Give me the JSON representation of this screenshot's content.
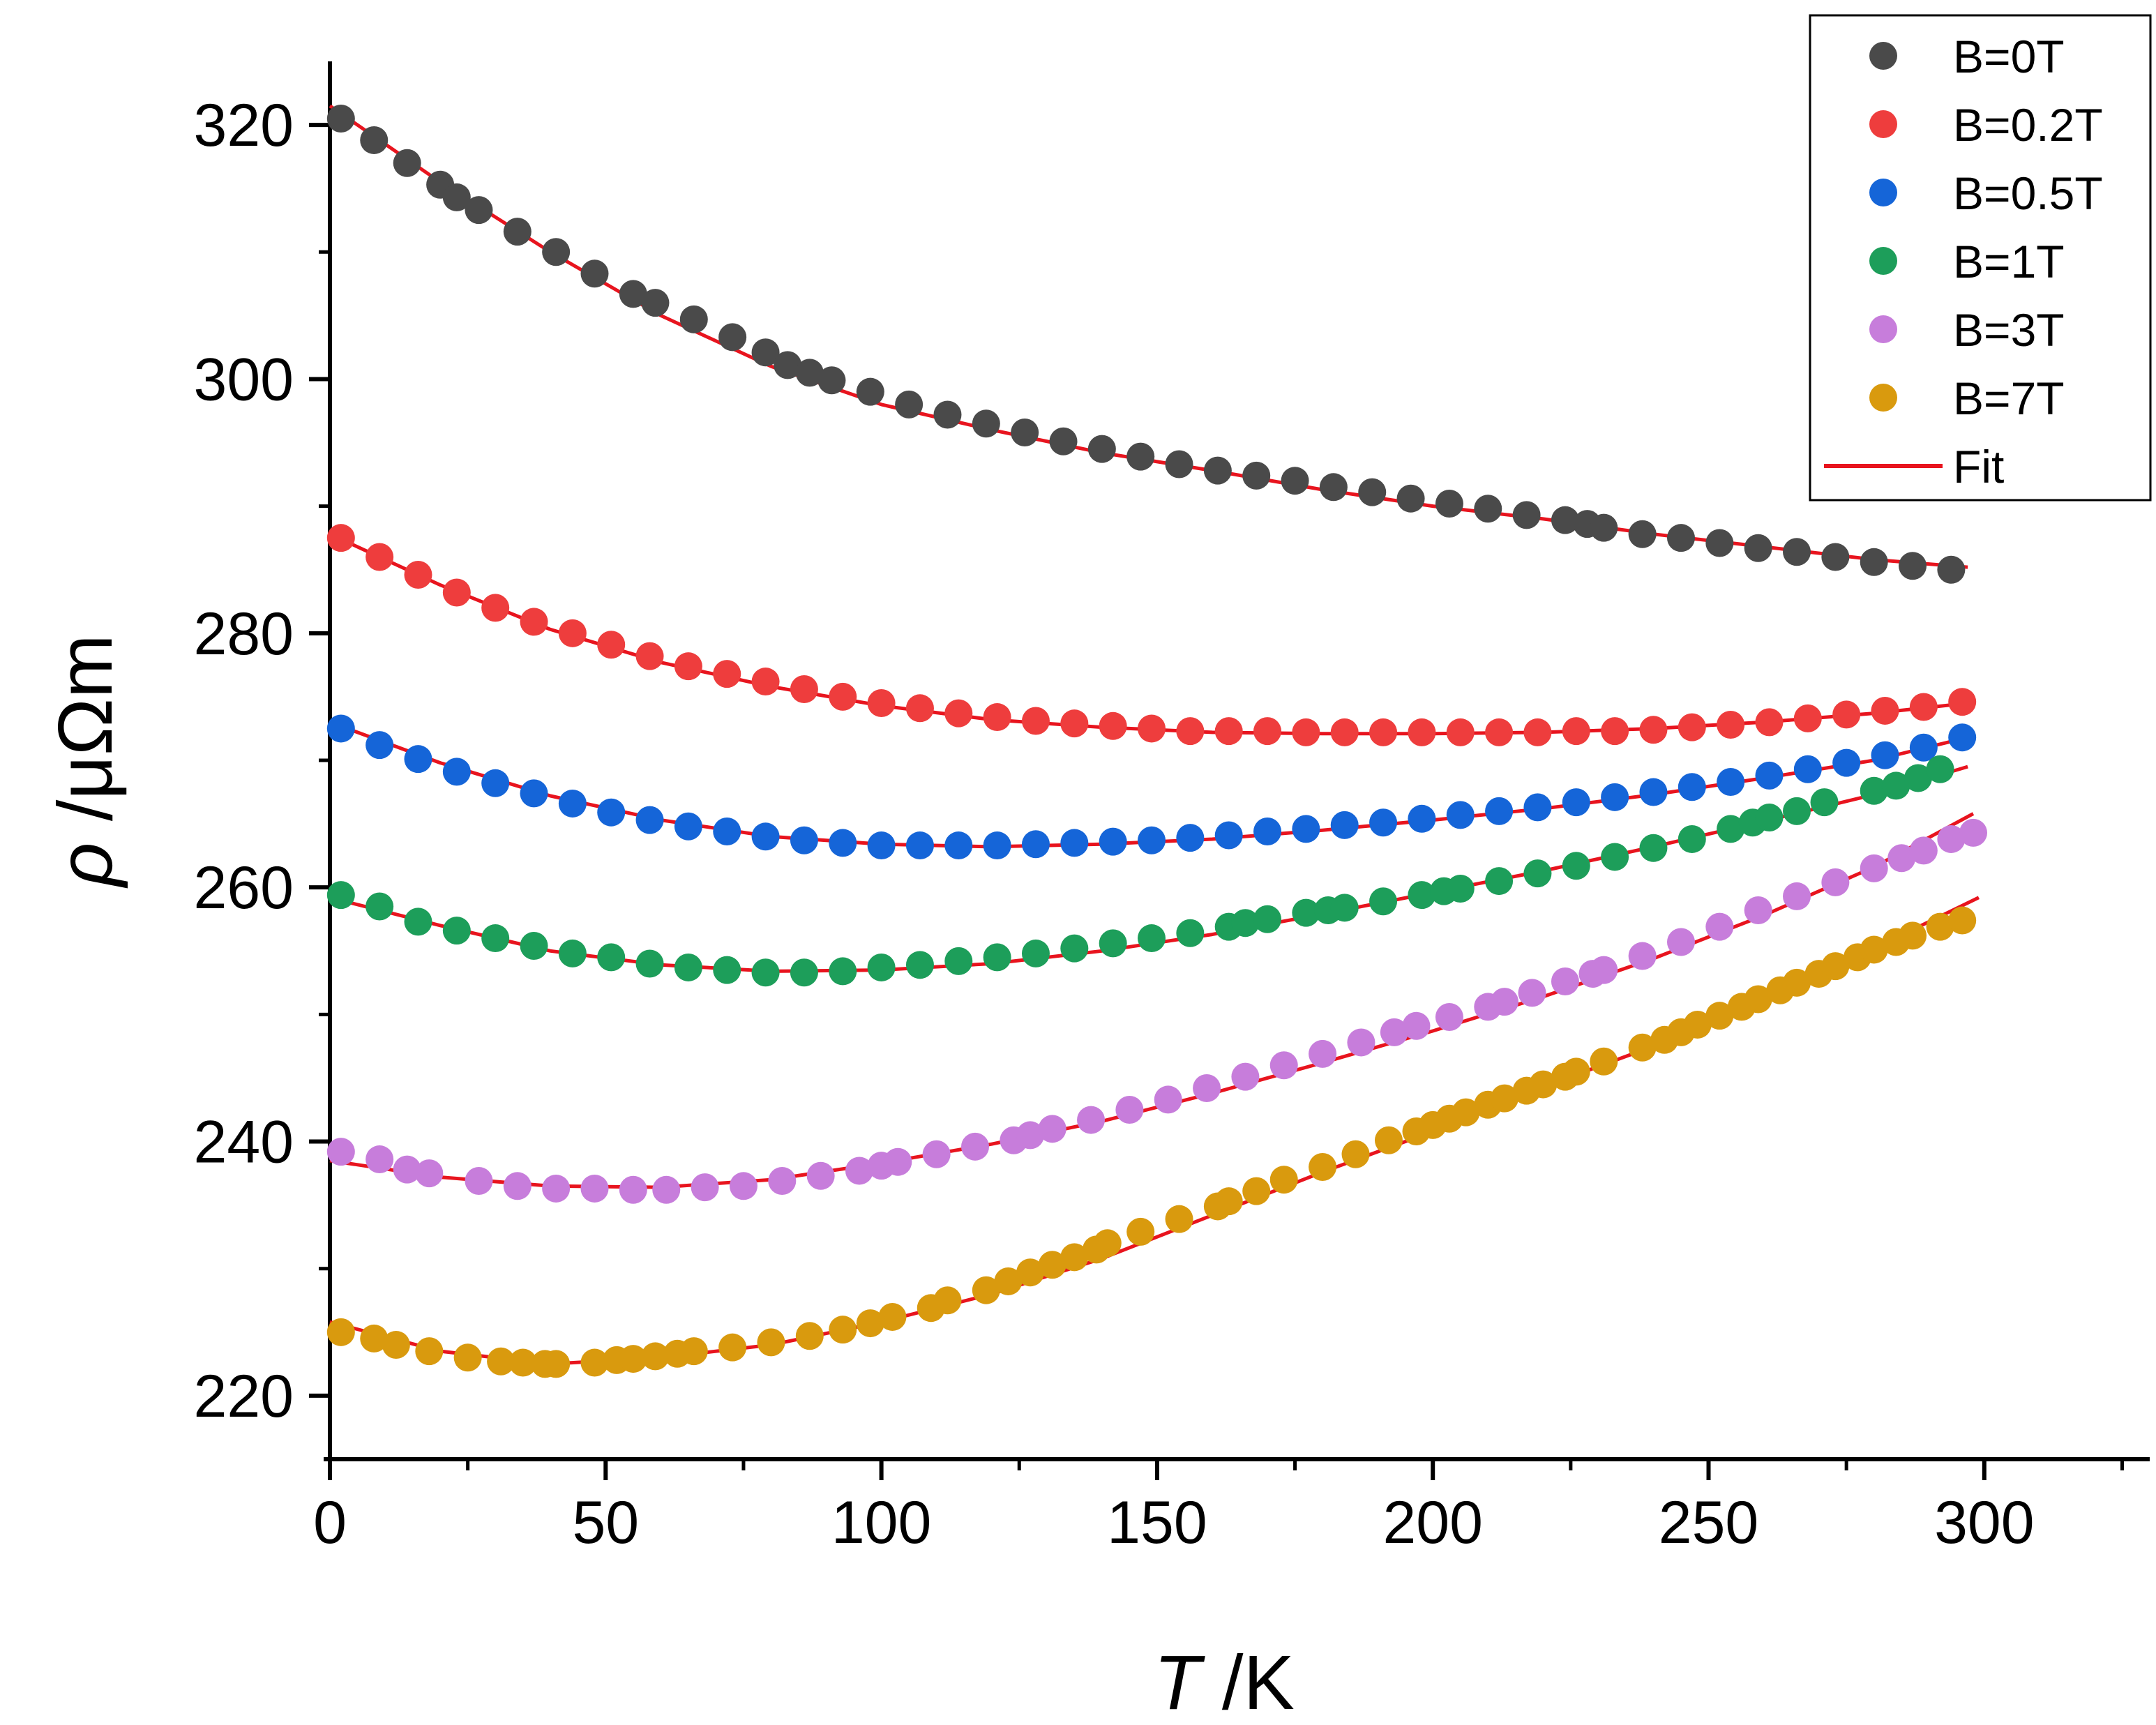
{
  "chart_data": {
    "type": "scatter",
    "title": "",
    "xlabel": "T /K",
    "xlabel_italic": "T",
    "xlabel_unit": " /K",
    "ylabel": "ρ /μΩm",
    "ylabel_symbol": "ρ",
    "ylabel_unit": " /μΩm",
    "xlim": [
      0,
      330
    ],
    "ylim": [
      215,
      325
    ],
    "x_ticks": [
      0,
      50,
      100,
      150,
      200,
      250,
      300
    ],
    "x_tick_labels": [
      "0",
      "50",
      "100",
      "150",
      "200",
      "250",
      "300"
    ],
    "y_ticks": [
      220,
      240,
      260,
      280,
      300,
      320
    ],
    "y_tick_labels": [
      "220",
      "240",
      "260",
      "280",
      "300",
      "320"
    ],
    "grid": false,
    "legend_position": "top-right",
    "series": [
      {
        "name": "B=0T",
        "color": "#4a4a4a",
        "x": [
          2,
          8,
          14,
          20,
          23,
          27,
          34,
          41,
          48,
          55,
          59,
          66,
          73,
          79,
          83,
          87,
          91,
          98,
          105,
          112,
          119,
          126,
          133,
          140,
          147,
          154,
          161,
          168,
          175,
          182,
          189,
          196,
          203,
          210,
          217,
          224,
          228,
          231,
          238,
          245,
          252,
          259,
          266,
          273,
          280,
          287,
          294
        ],
        "y": [
          320.5,
          318.8,
          317.0,
          315.3,
          314.3,
          313.3,
          311.6,
          310.0,
          308.3,
          306.7,
          306.0,
          304.7,
          303.3,
          302.1,
          301.1,
          300.5,
          299.9,
          299.0,
          298.0,
          297.2,
          296.5,
          295.8,
          295.1,
          294.5,
          293.9,
          293.3,
          292.8,
          292.4,
          292.0,
          291.5,
          291.1,
          290.6,
          290.2,
          289.8,
          289.3,
          288.9,
          288.6,
          288.3,
          287.8,
          287.5,
          287.1,
          286.7,
          286.4,
          286.0,
          285.6,
          285.3,
          285.0
        ]
      },
      {
        "name": "B=0.2T",
        "color": "#ee3d3d",
        "x": [
          2,
          9,
          16,
          23,
          30,
          37,
          44,
          51,
          58,
          65,
          72,
          79,
          86,
          93,
          100,
          107,
          114,
          121,
          128,
          135,
          142,
          149,
          156,
          163,
          170,
          177,
          184,
          191,
          198,
          205,
          212,
          219,
          226,
          233,
          240,
          247,
          254,
          261,
          268,
          275,
          282,
          289,
          296
        ],
        "y": [
          287.5,
          286.0,
          284.6,
          283.2,
          282.0,
          280.9,
          280.0,
          279.1,
          278.2,
          277.4,
          276.8,
          276.2,
          275.6,
          275.0,
          274.5,
          274.1,
          273.7,
          273.4,
          273.1,
          272.9,
          272.7,
          272.5,
          272.3,
          272.3,
          272.3,
          272.2,
          272.2,
          272.2,
          272.2,
          272.2,
          272.2,
          272.2,
          272.3,
          272.3,
          272.4,
          272.6,
          272.8,
          273.0,
          273.3,
          273.6,
          273.9,
          274.2,
          274.6
        ]
      },
      {
        "name": "B=0.5T",
        "color": "#1565d8",
        "x": [
          2,
          9,
          16,
          23,
          30,
          37,
          44,
          51,
          58,
          65,
          72,
          79,
          86,
          93,
          100,
          107,
          114,
          121,
          128,
          135,
          142,
          149,
          156,
          163,
          170,
          177,
          184,
          191,
          198,
          205,
          212,
          219,
          226,
          233,
          240,
          247,
          254,
          261,
          268,
          275,
          282,
          289,
          296
        ],
        "y": [
          272.5,
          271.2,
          270.1,
          269.1,
          268.2,
          267.4,
          266.6,
          265.9,
          265.3,
          264.8,
          264.4,
          264.0,
          263.7,
          263.5,
          263.3,
          263.3,
          263.3,
          263.3,
          263.4,
          263.5,
          263.6,
          263.7,
          263.9,
          264.1,
          264.4,
          264.6,
          264.9,
          265.1,
          265.4,
          265.7,
          266.0,
          266.3,
          266.7,
          267.1,
          267.5,
          267.9,
          268.3,
          268.8,
          269.3,
          269.8,
          270.4,
          271.0,
          271.8
        ]
      },
      {
        "name": "B=1T",
        "color": "#1d9e5a",
        "x": [
          2,
          9,
          16,
          23,
          30,
          37,
          44,
          51,
          58,
          65,
          72,
          79,
          86,
          93,
          100,
          107,
          114,
          121,
          128,
          135,
          142,
          149,
          156,
          163,
          166,
          170,
          177,
          181,
          184,
          191,
          198,
          202,
          205,
          212,
          219,
          226,
          233,
          240,
          247,
          254,
          258,
          261,
          266,
          271,
          280,
          284,
          288,
          292
        ],
        "y": [
          259.4,
          258.5,
          257.3,
          256.6,
          256.0,
          255.4,
          254.8,
          254.5,
          254.0,
          253.7,
          253.5,
          253.3,
          253.3,
          253.4,
          253.7,
          253.9,
          254.2,
          254.5,
          254.8,
          255.2,
          255.6,
          256.0,
          256.4,
          256.9,
          257.2,
          257.5,
          258.0,
          258.2,
          258.4,
          258.9,
          259.4,
          259.7,
          259.9,
          260.5,
          261.1,
          261.7,
          262.4,
          263.1,
          263.8,
          264.6,
          265.1,
          265.5,
          266.0,
          266.7,
          267.6,
          268.0,
          268.6,
          269.3
        ]
      },
      {
        "name": "B=3T",
        "color": "#c77ddb",
        "x": [
          2,
          9,
          14,
          18,
          27,
          34,
          41,
          48,
          55,
          61,
          68,
          75,
          82,
          89,
          96,
          100,
          103,
          110,
          117,
          124,
          127,
          131,
          138,
          145,
          152,
          159,
          166,
          173,
          180,
          187,
          193,
          197,
          203,
          210,
          213,
          218,
          224,
          229,
          231,
          238,
          245,
          252,
          259,
          266,
          273,
          280,
          285,
          289,
          294,
          298
        ],
        "y": [
          239.2,
          238.6,
          237.8,
          237.5,
          236.9,
          236.5,
          236.3,
          236.3,
          236.2,
          236.2,
          236.4,
          236.5,
          236.9,
          237.3,
          237.7,
          238.1,
          238.4,
          239.0,
          239.6,
          240.1,
          240.5,
          241.0,
          241.7,
          242.5,
          243.3,
          244.2,
          245.1,
          246.0,
          246.9,
          247.8,
          248.6,
          249.1,
          249.8,
          250.6,
          251.0,
          251.7,
          252.6,
          253.2,
          253.5,
          254.6,
          255.7,
          256.9,
          258.2,
          259.3,
          260.4,
          261.5,
          262.3,
          262.9,
          263.8,
          264.3
        ]
      },
      {
        "name": "B=7T",
        "color": "#d99a0e",
        "x": [
          2,
          8,
          12,
          18,
          25,
          31,
          35,
          39,
          41,
          48,
          52,
          55,
          59,
          63,
          66,
          73,
          80,
          87,
          93,
          98,
          102,
          109,
          112,
          119,
          123,
          127,
          131,
          135,
          139,
          141,
          147,
          154,
          161,
          163,
          168,
          173,
          180,
          186,
          192,
          197,
          200,
          203,
          206,
          210,
          213,
          217,
          220,
          224,
          226,
          231,
          238,
          242,
          245,
          248,
          252,
          256,
          259,
          263,
          266,
          270,
          273,
          277,
          280,
          284,
          287,
          292,
          296
        ],
        "y": [
          225.0,
          224.5,
          224.0,
          223.5,
          223.0,
          222.7,
          222.6,
          222.5,
          222.5,
          222.6,
          222.8,
          222.9,
          223.1,
          223.3,
          223.5,
          223.8,
          224.2,
          224.7,
          225.2,
          225.7,
          226.2,
          226.9,
          227.5,
          228.3,
          229.0,
          229.7,
          230.3,
          230.9,
          231.5,
          232.0,
          232.9,
          233.9,
          234.9,
          235.3,
          236.1,
          237.0,
          238.0,
          239.0,
          240.1,
          240.8,
          241.3,
          241.8,
          242.3,
          242.9,
          243.4,
          244.0,
          244.5,
          245.1,
          245.5,
          246.3,
          247.4,
          248.0,
          248.6,
          249.2,
          249.9,
          250.6,
          251.2,
          251.9,
          252.5,
          253.2,
          253.8,
          254.5,
          255.1,
          255.7,
          256.2,
          256.9,
          257.4
        ]
      }
    ],
    "fit": {
      "name": "Fit",
      "color": "#e8141e",
      "curves": [
        {
          "x": [
            0,
            20,
            40,
            60,
            80,
            100,
            120,
            140,
            160,
            180,
            200,
            220,
            240,
            260,
            280,
            297
          ],
          "y": [
            321.5,
            315.5,
            310.0,
            305.0,
            301.0,
            298.0,
            296.0,
            294.2,
            292.8,
            291.3,
            290.0,
            289.0,
            287.8,
            286.8,
            285.8,
            285.2
          ]
        },
        {
          "x": [
            0,
            20,
            40,
            60,
            80,
            100,
            120,
            140,
            160,
            180,
            200,
            220,
            240,
            260,
            280,
            297
          ],
          "y": [
            287.8,
            283.8,
            280.3,
            277.7,
            275.8,
            274.3,
            273.2,
            272.6,
            272.2,
            272.1,
            272.1,
            272.2,
            272.5,
            273.0,
            273.7,
            274.5
          ]
        },
        {
          "x": [
            0,
            20,
            40,
            60,
            80,
            100,
            120,
            140,
            160,
            180,
            200,
            220,
            240,
            260,
            280,
            297
          ],
          "y": [
            273.0,
            269.8,
            267.2,
            265.3,
            264.0,
            263.4,
            263.2,
            263.4,
            263.8,
            264.5,
            265.3,
            266.2,
            267.3,
            268.6,
            270.0,
            271.8
          ]
        },
        {
          "x": [
            0,
            20,
            40,
            60,
            80,
            100,
            120,
            140,
            160,
            180,
            200,
            220,
            240,
            260,
            280,
            297
          ],
          "y": [
            259.2,
            257.0,
            255.0,
            253.9,
            253.4,
            253.5,
            254.0,
            255.0,
            256.3,
            257.9,
            259.6,
            261.3,
            263.2,
            265.2,
            267.3,
            269.5
          ]
        },
        {
          "x": [
            0,
            20,
            40,
            60,
            80,
            100,
            120,
            140,
            160,
            180,
            200,
            220,
            240,
            260,
            280,
            298
          ],
          "y": [
            238.5,
            237.2,
            236.5,
            236.4,
            237.0,
            238.3,
            239.8,
            241.6,
            243.8,
            246.2,
            248.7,
            251.4,
            254.4,
            257.8,
            261.6,
            265.8
          ]
        },
        {
          "x": [
            0,
            20,
            40,
            60,
            80,
            100,
            120,
            140,
            160,
            180,
            200,
            220,
            240,
            260,
            280,
            299
          ],
          "y": [
            225.8,
            223.5,
            222.5,
            223.0,
            224.0,
            225.8,
            228.0,
            230.8,
            234.2,
            237.6,
            240.8,
            244.3,
            247.5,
            251.3,
            255.2,
            259.2
          ]
        }
      ]
    }
  }
}
